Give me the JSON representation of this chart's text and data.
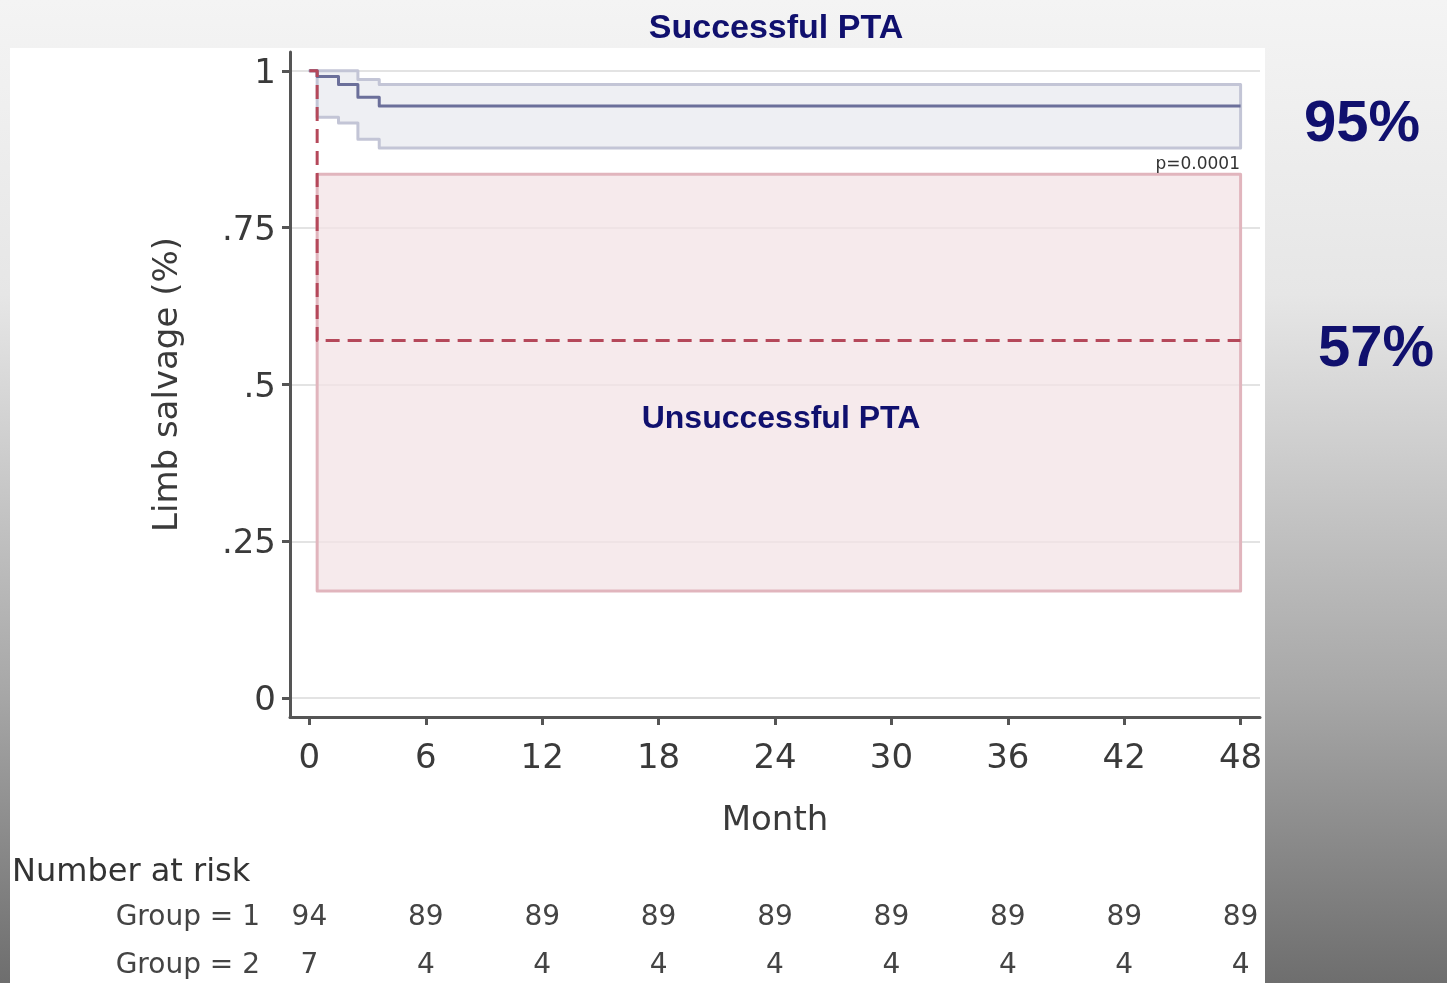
{
  "chart_data": {
    "type": "step",
    "title": "Successful PTA",
    "xlabel": "Month",
    "ylabel": "Limb salvage (%)",
    "series": [
      {
        "color": "#6b6f9a",
        "line_style": "solid",
        "x": [
          0,
          0.4,
          1.5,
          2.5,
          3.6,
          48
        ],
        "values": [
          1,
          0.991,
          0.978,
          0.958,
          0.944,
          0.944
        ],
        "lower": [
          1,
          0.926,
          0.917,
          0.891,
          0.877,
          0.877
        ],
        "upper": [
          1,
          1,
          1,
          0.986,
          0.978,
          0.978
        ]
      },
      {
        "color": "#b5485a",
        "line_style": "dashed",
        "x": [
          0,
          0.4,
          48
        ],
        "values": [
          1,
          0.57,
          0.57
        ],
        "lower": [
          null,
          0.171,
          0.171
        ],
        "upper": [
          null,
          0.835,
          0.835
        ]
      }
    ],
    "xlim": [
      -1,
      49
    ],
    "xticks": [
      0,
      6,
      12,
      18,
      24,
      30,
      36,
      42,
      48
    ],
    "ylim": [
      -0.03,
      1.03
    ],
    "yticks": [
      0,
      {
        "value": 0.25,
        "label": ".25"
      },
      {
        "value": 0.5,
        "label": ".5"
      },
      {
        "value": 0.75,
        "label": ".75"
      },
      1
    ],
    "grid": "y",
    "marker": "none",
    "annotations": [
      "Unsuccessful PTA",
      "95%",
      "57%",
      "p=0.0001",
      "Number at risk",
      "Group = 1",
      "94",
      "89",
      "89",
      "89",
      "89",
      "89",
      "89",
      "89",
      "89",
      "Group = 2",
      "7",
      "4",
      "4",
      "4",
      "4",
      "4",
      "4",
      "4",
      "4"
    ]
  }
}
